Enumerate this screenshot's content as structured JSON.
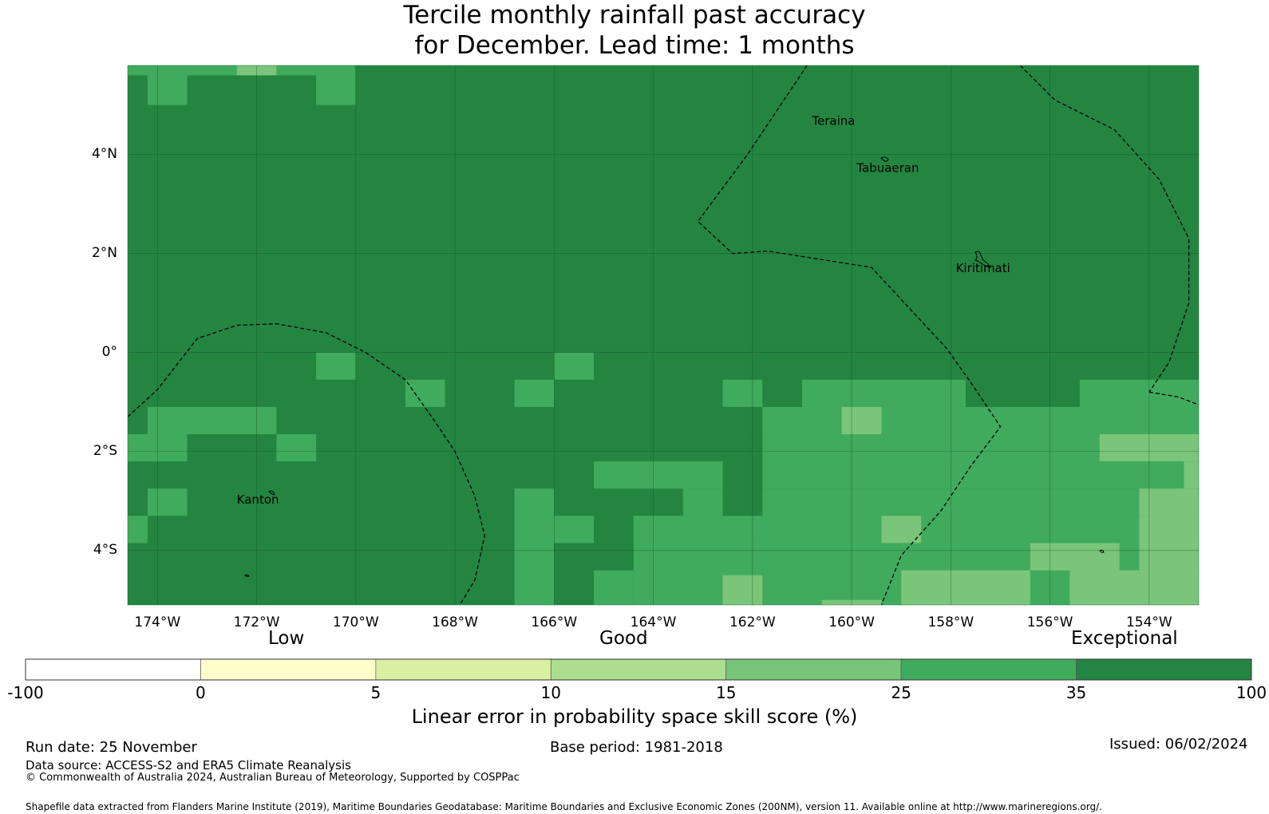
{
  "title": {
    "line1": "Tercile monthly rainfall past accuracy",
    "line2": "for December. Lead time: 1 months"
  },
  "map": {
    "extent": {
      "lon_min": -174.6,
      "lon_max": -153.0,
      "lat_min": -5.1,
      "lat_max": 5.8
    },
    "lat_ticks": [
      {
        "value": 4,
        "label": "4°N"
      },
      {
        "value": 2,
        "label": "2°N"
      },
      {
        "value": 0,
        "label": "0°"
      },
      {
        "value": -2,
        "label": "2°S"
      },
      {
        "value": -4,
        "label": "4°S"
      }
    ],
    "lon_ticks": [
      {
        "value": -174,
        "label": "174°W"
      },
      {
        "value": -172,
        "label": "172°W"
      },
      {
        "value": -170,
        "label": "170°W"
      },
      {
        "value": -168,
        "label": "168°W"
      },
      {
        "value": -166,
        "label": "166°W"
      },
      {
        "value": -164,
        "label": "164°W"
      },
      {
        "value": -162,
        "label": "162°W"
      },
      {
        "value": -160,
        "label": "160°W"
      },
      {
        "value": -158,
        "label": "158°W"
      },
      {
        "value": -156,
        "label": "156°W"
      },
      {
        "value": -154,
        "label": "154°W"
      }
    ],
    "places": [
      {
        "name": "Teraina",
        "lon": -160.8,
        "lat": 4.6
      },
      {
        "name": "Tabuaeran",
        "lon": -159.9,
        "lat": 3.65
      },
      {
        "name": "Kiritimati",
        "lon": -157.9,
        "lat": 1.62
      },
      {
        "name": "Kanton",
        "lon": -172.4,
        "lat": -3.05
      }
    ],
    "background_color": "#248541",
    "patch_colors": {
      "light": "#7bc57a",
      "mid": "#41ab5d",
      "dark": "#248541"
    },
    "patches": [
      {
        "lon0": -172.4,
        "lon1": -171.6,
        "lat0": 5.6,
        "lat1": 5.8,
        "tone": "light"
      },
      {
        "lon0": -174.6,
        "lon1": -174.2,
        "lat0": 5.6,
        "lat1": 5.8,
        "tone": "mid"
      },
      {
        "lon0": -174.2,
        "lon1": -172.4,
        "lat0": 5.6,
        "lat1": 5.8,
        "tone": "mid"
      },
      {
        "lon0": -171.6,
        "lon1": -170.8,
        "lat0": 5.6,
        "lat1": 5.8,
        "tone": "mid"
      },
      {
        "lon0": -174.2,
        "lon1": -173.4,
        "lat0": 5.0,
        "lat1": 5.6,
        "tone": "mid"
      },
      {
        "lon0": -170.8,
        "lon1": -170.0,
        "lat0": 5.0,
        "lat1": 5.8,
        "tone": "mid"
      },
      {
        "lon0": -170.8,
        "lon1": -170.0,
        "lat0": -0.55,
        "lat1": 0.0,
        "tone": "mid"
      },
      {
        "lon0": -166.0,
        "lon1": -165.2,
        "lat0": -0.55,
        "lat1": 0.0,
        "tone": "mid"
      },
      {
        "lon0": -169.0,
        "lon1": -168.2,
        "lat0": -1.1,
        "lat1": -0.55,
        "tone": "mid"
      },
      {
        "lon0": -166.8,
        "lon1": -166.0,
        "lat0": -1.1,
        "lat1": -0.55,
        "tone": "mid"
      },
      {
        "lon0": -162.6,
        "lon1": -161.8,
        "lat0": -1.1,
        "lat1": -0.55,
        "tone": "mid"
      },
      {
        "lon0": -161.0,
        "lon1": -157.7,
        "lat0": -1.1,
        "lat1": -0.55,
        "tone": "mid"
      },
      {
        "lon0": -155.4,
        "lon1": -153.3,
        "lat0": -1.1,
        "lat1": -0.55,
        "tone": "mid"
      },
      {
        "lon0": -174.2,
        "lon1": -171.6,
        "lat0": -1.65,
        "lat1": -1.1,
        "tone": "mid"
      },
      {
        "lon0": -174.6,
        "lon1": -173.4,
        "lat0": -2.2,
        "lat1": -1.65,
        "tone": "mid"
      },
      {
        "lon0": -171.6,
        "lon1": -170.8,
        "lat0": -2.2,
        "lat1": -1.65,
        "tone": "mid"
      },
      {
        "lon0": -161.8,
        "lon1": -153.0,
        "lat0": -2.2,
        "lat1": -1.1,
        "tone": "mid"
      },
      {
        "lon0": -153.3,
        "lon1": -153.0,
        "lat0": -1.1,
        "lat1": -0.55,
        "tone": "mid"
      },
      {
        "lon0": -160.2,
        "lon1": -159.4,
        "lat0": -1.65,
        "lat1": -1.1,
        "tone": "light"
      },
      {
        "lon0": -155.0,
        "lon1": -153.0,
        "lat0": -2.2,
        "lat1": -1.65,
        "tone": "light"
      },
      {
        "lon0": -165.2,
        "lon1": -162.6,
        "lat0": -2.75,
        "lat1": -2.2,
        "tone": "mid"
      },
      {
        "lon0": -161.8,
        "lon1": -153.3,
        "lat0": -2.75,
        "lat1": -2.2,
        "tone": "mid"
      },
      {
        "lon0": -153.3,
        "lon1": -153.0,
        "lat0": -2.75,
        "lat1": -2.2,
        "tone": "light"
      },
      {
        "lon0": -174.2,
        "lon1": -173.4,
        "lat0": -3.3,
        "lat1": -2.75,
        "tone": "mid"
      },
      {
        "lon0": -166.8,
        "lon1": -166.0,
        "lat0": -3.3,
        "lat1": -2.75,
        "tone": "mid"
      },
      {
        "lon0": -163.4,
        "lon1": -162.6,
        "lat0": -3.3,
        "lat1": -2.75,
        "tone": "mid"
      },
      {
        "lon0": -161.8,
        "lon1": -153.0,
        "lat0": -3.3,
        "lat1": -2.75,
        "tone": "mid"
      },
      {
        "lon0": -154.2,
        "lon1": -153.0,
        "lat0": -3.3,
        "lat1": -2.75,
        "tone": "light"
      },
      {
        "lon0": -174.6,
        "lon1": -174.2,
        "lat0": -3.85,
        "lat1": -3.3,
        "tone": "mid"
      },
      {
        "lon0": -166.8,
        "lon1": -166.0,
        "lat0": -3.85,
        "lat1": -3.3,
        "tone": "mid"
      },
      {
        "lon0": -166.0,
        "lon1": -165.2,
        "lat0": -3.85,
        "lat1": -3.3,
        "tone": "mid"
      },
      {
        "lon0": -164.4,
        "lon1": -161.8,
        "lat0": -3.85,
        "lat1": -3.3,
        "tone": "mid"
      },
      {
        "lon0": -161.8,
        "lon1": -154.2,
        "lat0": -3.85,
        "lat1": -3.3,
        "tone": "mid"
      },
      {
        "lon0": -154.2,
        "lon1": -153.0,
        "lat0": -3.85,
        "lat1": -3.3,
        "tone": "light"
      },
      {
        "lon0": -159.4,
        "lon1": -158.6,
        "lat0": -3.85,
        "lat1": -3.3,
        "tone": "light"
      },
      {
        "lon0": -166.8,
        "lon1": -166.0,
        "lat0": -5.1,
        "lat1": -3.85,
        "tone": "mid"
      },
      {
        "lon0": -164.4,
        "lon1": -161.8,
        "lat0": -5.1,
        "lat1": -3.85,
        "tone": "mid"
      },
      {
        "lon0": -161.8,
        "lon1": -153.0,
        "lat0": -5.1,
        "lat1": -3.85,
        "tone": "mid"
      },
      {
        "lon0": -165.2,
        "lon1": -164.4,
        "lat0": -5.1,
        "lat1": -4.4,
        "tone": "mid"
      },
      {
        "lon0": -156.4,
        "lon1": -154.6,
        "lat0": -4.4,
        "lat1": -3.85,
        "tone": "light"
      },
      {
        "lon0": -154.2,
        "lon1": -153.0,
        "lat0": -4.4,
        "lat1": -3.85,
        "tone": "light"
      },
      {
        "lon0": -159.0,
        "lon1": -156.4,
        "lat0": -5.1,
        "lat1": -4.4,
        "tone": "light"
      },
      {
        "lon0": -155.6,
        "lon1": -153.0,
        "lat0": -5.1,
        "lat1": -4.4,
        "tone": "light"
      },
      {
        "lon0": -162.6,
        "lon1": -161.8,
        "lat0": -5.1,
        "lat1": -4.5,
        "tone": "light"
      },
      {
        "lon0": -166.0,
        "lon1": -164.4,
        "lat0": -4.4,
        "lat1": -3.85,
        "tone": "dark"
      },
      {
        "lon0": -162.6,
        "lon1": -161.8,
        "lat0": -3.3,
        "lat1": -1.65,
        "tone": "dark"
      },
      {
        "lon0": -161.8,
        "lon1": -161.0,
        "lat0": -1.1,
        "lat1": -0.55,
        "tone": "dark"
      },
      {
        "lon0": -160.6,
        "lon1": -159.4,
        "lat0": -5.1,
        "lat1": -5.0,
        "tone": "light"
      }
    ],
    "boundary_lines": [
      [
        [
          -174.6,
          -1.3
        ],
        [
          -174.0,
          -0.75
        ],
        [
          -173.2,
          0.28
        ],
        [
          -172.4,
          0.55
        ],
        [
          -171.6,
          0.58
        ],
        [
          -170.6,
          0.4
        ],
        [
          -169.8,
          0.0
        ],
        [
          -169.0,
          -0.55
        ],
        [
          -168.4,
          -1.4
        ],
        [
          -168.0,
          -2.0
        ],
        [
          -167.6,
          -2.9
        ],
        [
          -167.4,
          -3.7
        ],
        [
          -167.6,
          -4.6
        ],
        [
          -167.9,
          -5.1
        ]
      ],
      [
        [
          -160.9,
          5.8
        ],
        [
          -162.1,
          4.0
        ],
        [
          -163.1,
          2.65
        ],
        [
          -162.4,
          2.0
        ],
        [
          -161.7,
          2.05
        ],
        [
          -159.6,
          1.72
        ],
        [
          -158.1,
          0.1
        ],
        [
          -157.6,
          -0.6
        ],
        [
          -157.0,
          -1.5
        ],
        [
          -157.6,
          -2.3
        ],
        [
          -158.2,
          -3.2
        ],
        [
          -159.0,
          -4.1
        ],
        [
          -159.2,
          -4.6
        ],
        [
          -159.4,
          -5.1
        ]
      ],
      [
        [
          -156.6,
          5.8
        ],
        [
          -155.9,
          5.1
        ],
        [
          -154.7,
          4.5
        ],
        [
          -153.8,
          3.5
        ],
        [
          -153.2,
          2.3
        ],
        [
          -153.2,
          1.0
        ],
        [
          -153.6,
          -0.2
        ],
        [
          -154.0,
          -0.8
        ]
      ],
      [
        [
          -154.0,
          -0.8
        ],
        [
          -153.4,
          -0.9
        ],
        [
          -152.9,
          -1.1
        ]
      ]
    ]
  },
  "colorbar": {
    "colors": [
      "#ffffff",
      "#ffffcc",
      "#d9f0a3",
      "#addd8e",
      "#78c679",
      "#41ab5d",
      "#238443"
    ],
    "ticks": [
      "-100",
      "0",
      "5",
      "10",
      "15",
      "25",
      "35",
      "100"
    ],
    "categories": {
      "low": "Low",
      "good": "Good",
      "exceptional": "Exceptional"
    },
    "title": "Linear error in probability space skill score (%)"
  },
  "footer": {
    "run_date": "Run date: 25 November",
    "base_period": "Base period: 1981-2018",
    "issued": "Issued: 06/02/2024",
    "data_source": "Data source: ACCESS-S2 and ERA5 Climate Reanalysis",
    "copyright": "© Commonwealth of Australia 2024, Australian Bureau of Meteorology, Supported by COSPPac",
    "shapefile": "Shapefile data extracted from Flanders Marine Institute (2019), Maritime Boundaries Geodatabase: Maritime Boundaries and Exclusive Economic Zones (200NM), version 11. Available online at http://www.marineregions.org/."
  }
}
